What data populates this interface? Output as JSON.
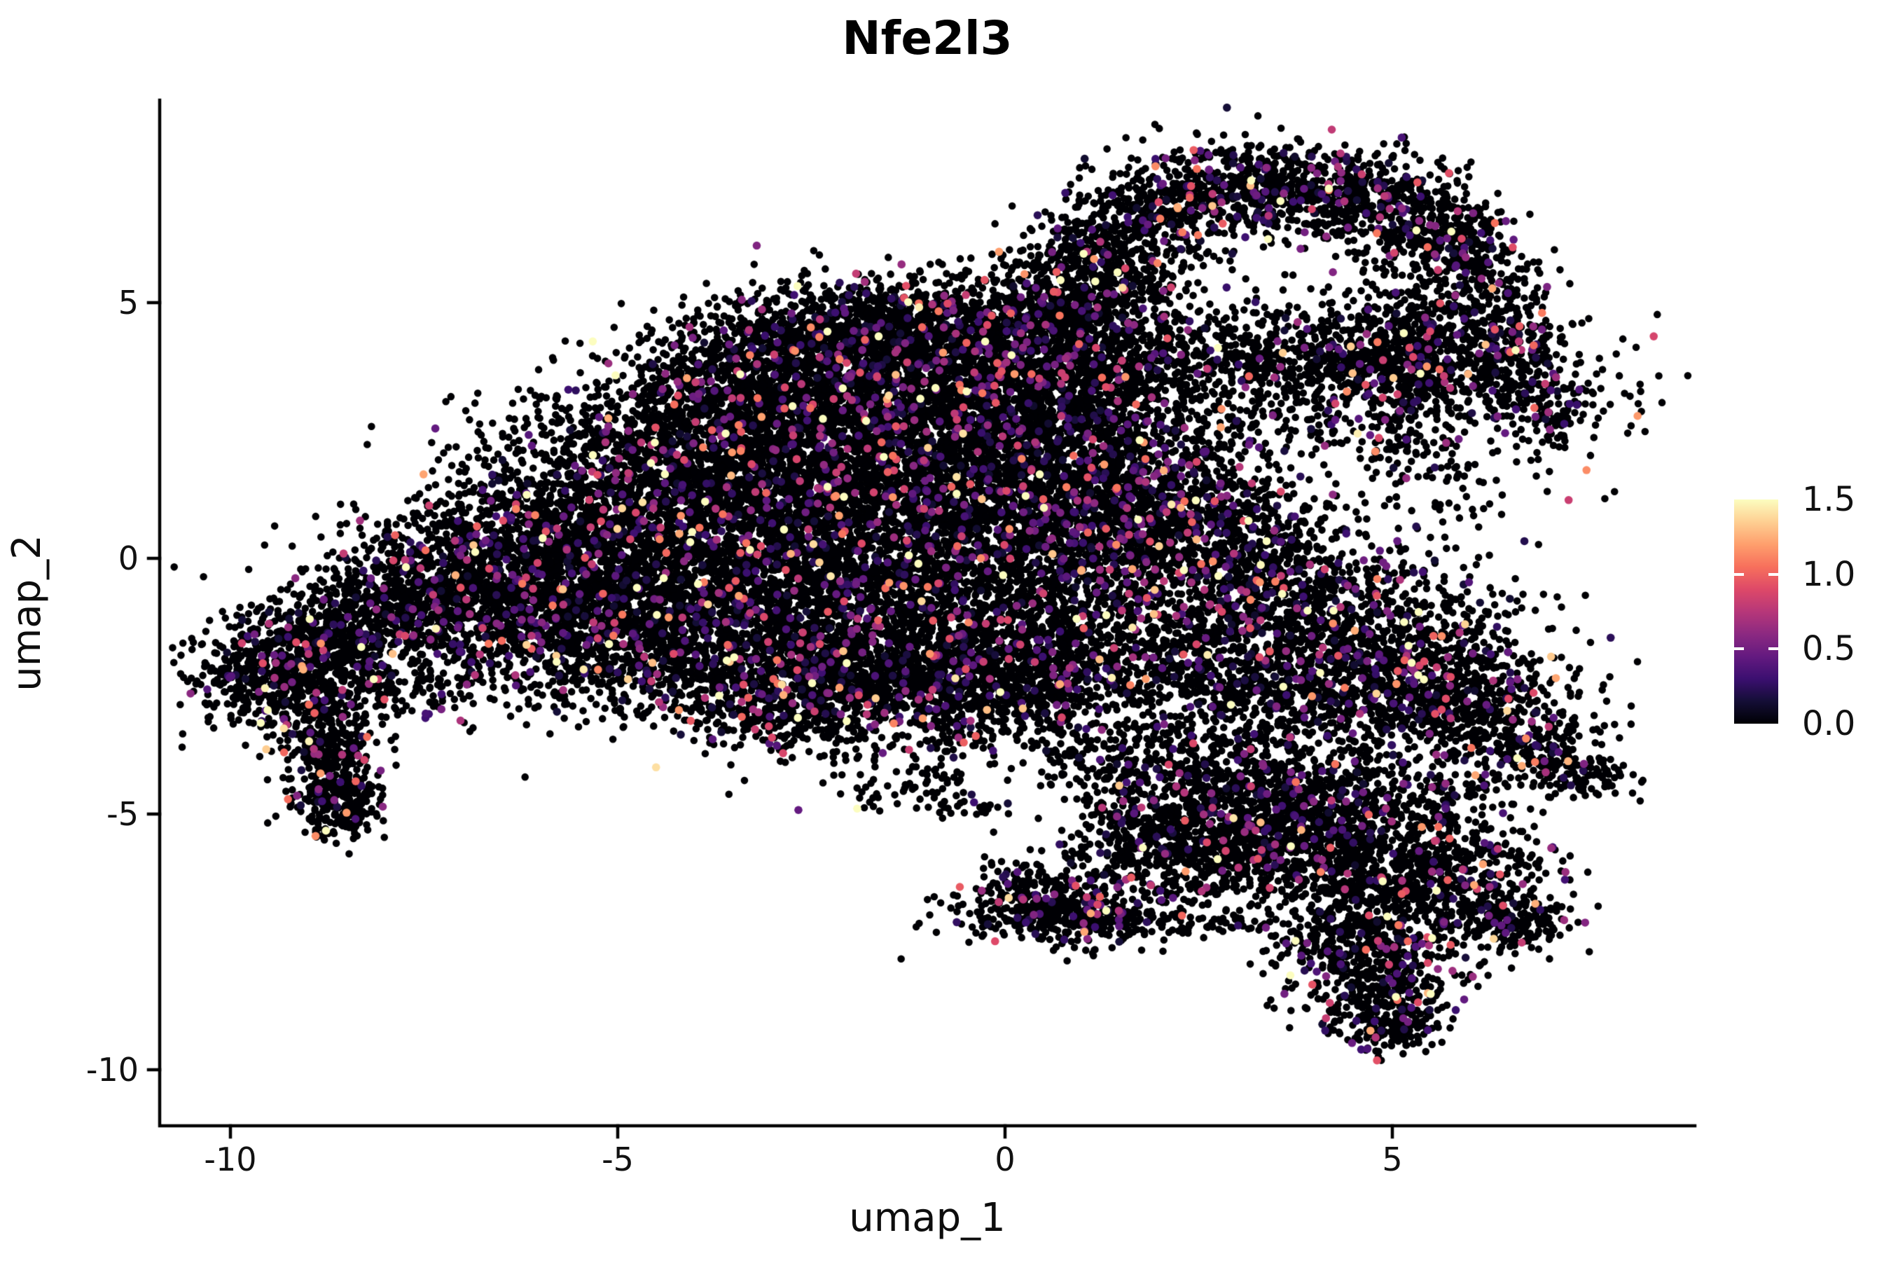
{
  "title": "Nfe2l3",
  "chart_data": {
    "type": "scatter",
    "subtype": "umap-feature-plot",
    "title": "Nfe2l3",
    "xlabel": "umap_1",
    "ylabel": "umap_2",
    "xlim": [
      -10.9,
      8.9
    ],
    "ylim": [
      -11.1,
      9.0
    ],
    "grid": false,
    "background": "#ffffff",
    "axis_color": "#000000",
    "text_color": "#111111",
    "x_ticks": [
      {
        "value": -10,
        "label": "-10"
      },
      {
        "value": -5,
        "label": "-5"
      },
      {
        "value": 0,
        "label": "0"
      },
      {
        "value": 5,
        "label": "5"
      }
    ],
    "y_ticks": [
      {
        "value": 5,
        "label": "5"
      },
      {
        "value": 0,
        "label": "0"
      },
      {
        "value": -5,
        "label": "-5"
      },
      {
        "value": -10,
        "label": "-10"
      }
    ],
    "colorbar": {
      "position": "right",
      "domain": [
        0,
        1.5
      ],
      "colormap": "magma",
      "ticks": [
        {
          "value": 1.5,
          "label": "1.5"
        },
        {
          "value": 1.0,
          "label": "1.0"
        },
        {
          "value": 0.5,
          "label": "0.5"
        },
        {
          "value": 0.0,
          "label": "0.0"
        }
      ],
      "stops": [
        [
          0.0,
          "#000004"
        ],
        [
          0.1,
          "#140e36"
        ],
        [
          0.2,
          "#3b0f70"
        ],
        [
          0.3,
          "#641a80"
        ],
        [
          0.4,
          "#8c2981"
        ],
        [
          0.5,
          "#b73779"
        ],
        [
          0.6,
          "#de4968"
        ],
        [
          0.7,
          "#f7705c"
        ],
        [
          0.8,
          "#fe9f6d"
        ],
        [
          0.9,
          "#fecf92"
        ],
        [
          1.0,
          "#fcfdbf"
        ]
      ]
    },
    "point": {
      "black_color": "#000004",
      "radius": 5.3,
      "colored_radius": 5.8,
      "color_rate": 0.09,
      "value_offset": 0.12,
      "value_scale": 0.42
    },
    "seed": 1337421,
    "density": 0.85,
    "clusters_format": "[center_umap1, center_umap2, sd_umap1, sd_umap2, n_points, color_rate_multiplier(optional)]",
    "clusters": [
      [
        -2.8,
        4.3,
        0.75,
        0.5,
        450
      ],
      [
        -1.8,
        4.55,
        0.8,
        0.5,
        480
      ],
      [
        -0.8,
        4.55,
        0.8,
        0.5,
        480
      ],
      [
        0.1,
        4.3,
        0.7,
        0.5,
        430
      ],
      [
        -3.6,
        3.3,
        0.9,
        0.6,
        560
      ],
      [
        -2.4,
        3.45,
        1,
        0.65,
        600
      ],
      [
        -1.2,
        3.45,
        1,
        0.65,
        600
      ],
      [
        0,
        3.3,
        0.9,
        0.65,
        560
      ],
      [
        0.95,
        3.1,
        0.7,
        0.6,
        440
      ],
      [
        -4.6,
        2.1,
        1,
        0.7,
        620
      ],
      [
        -3.2,
        2.25,
        1.1,
        0.75,
        650
      ],
      [
        -1.8,
        2.3,
        1.1,
        0.75,
        650
      ],
      [
        -0.4,
        2.2,
        1.1,
        0.75,
        650
      ],
      [
        0.9,
        2,
        0.8,
        0.7,
        480
      ],
      [
        -5.4,
        0.9,
        1,
        0.8,
        620
      ],
      [
        -4,
        1.05,
        1.1,
        0.85,
        650
      ],
      [
        -2.6,
        1.1,
        1.1,
        0.85,
        650
      ],
      [
        -1.2,
        1.05,
        1.1,
        0.85,
        650
      ],
      [
        0.2,
        0.95,
        1,
        0.8,
        600
      ],
      [
        -5.8,
        -0.3,
        0.9,
        0.75,
        560
      ],
      [
        -4.4,
        -0.3,
        1.05,
        0.85,
        620
      ],
      [
        -3,
        -0.25,
        1.05,
        0.85,
        620
      ],
      [
        -1.6,
        -0.35,
        1.05,
        0.85,
        620
      ],
      [
        -0.2,
        -0.4,
        1,
        0.8,
        580
      ],
      [
        -5,
        -1.3,
        0.85,
        0.65,
        500
      ],
      [
        -3.6,
        -1.5,
        0.95,
        0.7,
        540
      ],
      [
        -2.2,
        -1.65,
        0.95,
        0.7,
        540
      ],
      [
        -0.8,
        -1.7,
        0.95,
        0.7,
        540
      ],
      [
        0.45,
        -1.6,
        0.85,
        0.7,
        480
      ],
      [
        -3,
        -2.4,
        0.75,
        0.45,
        330
      ],
      [
        -1.8,
        -2.55,
        0.75,
        0.45,
        360
      ],
      [
        -0.6,
        -2.6,
        0.75,
        0.45,
        360
      ],
      [
        0.6,
        -2.5,
        0.65,
        0.45,
        310
      ],
      [
        -3.3,
        -3,
        0.6,
        0.45,
        150
      ],
      [
        -2.4,
        -3.3,
        0.5,
        0.4,
        90
      ],
      [
        -2,
        -3.1,
        1.2,
        0.35,
        90
      ],
      [
        -1.6,
        -4.3,
        0.5,
        0.3,
        45
      ],
      [
        -0.9,
        -4.6,
        0.4,
        0.25,
        32
      ],
      [
        -0.2,
        -5,
        0.3,
        0.25,
        22
      ],
      [
        -0.7,
        -3.8,
        0.4,
        0.3,
        40
      ],
      [
        -6.6,
        0.2,
        0.8,
        0.65,
        430
      ],
      [
        -7.4,
        -0.5,
        0.8,
        0.65,
        480
      ],
      [
        -8.2,
        -1.15,
        0.75,
        0.6,
        480
      ],
      [
        -8.95,
        -1.8,
        0.65,
        0.55,
        460
      ],
      [
        -9.5,
        -2.3,
        0.55,
        0.5,
        430
      ],
      [
        -6.9,
        -0.9,
        0.7,
        0.6,
        300
      ],
      [
        -8.75,
        -3.3,
        0.35,
        0.5,
        250
      ],
      [
        -8.7,
        -4.2,
        0.3,
        0.5,
        250
      ],
      [
        -8.62,
        -4.9,
        0.27,
        0.33,
        170
      ],
      [
        -7.6,
        -2.5,
        0.85,
        0.4,
        120
      ],
      [
        -6.5,
        -1.9,
        0.8,
        0.5,
        140
      ],
      [
        -5.6,
        -1.1,
        0.7,
        0.6,
        170
      ],
      [
        -5.2,
        -1.9,
        0.85,
        0.55,
        170
      ],
      [
        -4.3,
        -2.3,
        0.8,
        0.5,
        150
      ],
      [
        0.6,
        5.1,
        0.5,
        0.5,
        240,
        1.2
      ],
      [
        1.3,
        6,
        0.55,
        0.55,
        290,
        1.2
      ],
      [
        2.1,
        6.8,
        0.6,
        0.5,
        340,
        1.2
      ],
      [
        3,
        7.2,
        0.7,
        0.45,
        390,
        1.2
      ],
      [
        4,
        7.3,
        0.7,
        0.45,
        390,
        1.2
      ],
      [
        4.9,
        6.9,
        0.6,
        0.45,
        340,
        1.2
      ],
      [
        5.6,
        6.2,
        0.5,
        0.45,
        290,
        1.2
      ],
      [
        5.95,
        5.3,
        0.5,
        0.5,
        250,
        1.2
      ],
      [
        6.35,
        4.4,
        0.45,
        0.5,
        230,
        1.2
      ],
      [
        6.7,
        3.6,
        0.4,
        0.5,
        190,
        1.2
      ],
      [
        7,
        2.85,
        0.3,
        0.4,
        110,
        1.2
      ],
      [
        0.9,
        4.9,
        0.5,
        0.55,
        220
      ],
      [
        1.5,
        5.4,
        0.5,
        0.5,
        200
      ],
      [
        2,
        4.1,
        0.8,
        0.45,
        230
      ],
      [
        3,
        3.95,
        0.9,
        0.45,
        250
      ],
      [
        4,
        3.85,
        0.9,
        0.45,
        250
      ],
      [
        4.9,
        3.7,
        0.8,
        0.45,
        230
      ],
      [
        5.5,
        3.45,
        0.55,
        0.4,
        170
      ],
      [
        4.8,
        4.5,
        0.5,
        0.5,
        170
      ],
      [
        5.3,
        4.15,
        0.45,
        0.45,
        150
      ],
      [
        3.1,
        5.4,
        1,
        0.5,
        40
      ],
      [
        3.3,
        3,
        0.25,
        0.5,
        55
      ],
      [
        4.1,
        2.7,
        0.22,
        0.5,
        48
      ],
      [
        2.6,
        2.4,
        0.2,
        0.4,
        38
      ],
      [
        5,
        2.2,
        0.25,
        0.55,
        55
      ],
      [
        5.8,
        1.8,
        0.2,
        0.5,
        38
      ],
      [
        3.4,
        2.3,
        1.5,
        0.8,
        110
      ],
      [
        1.6,
        3,
        0.5,
        0.8,
        150
      ],
      [
        2.1,
        2.2,
        0.5,
        0.6,
        90
      ],
      [
        5.3,
        2.8,
        0.35,
        0.6,
        80
      ],
      [
        8,
        3.4,
        0.5,
        0.7,
        30
      ],
      [
        6.6,
        1.4,
        0.8,
        0.8,
        35
      ],
      [
        1.2,
        0.6,
        0.9,
        0.8,
        540,
        1.5
      ],
      [
        2.2,
        0.1,
        1,
        0.8,
        580,
        1.5
      ],
      [
        3.2,
        -0.5,
        1,
        0.8,
        580,
        1.5
      ],
      [
        4.2,
        -1.2,
        1,
        0.8,
        580,
        1.5
      ],
      [
        5,
        -1.9,
        0.9,
        0.7,
        520,
        1.4
      ],
      [
        5.7,
        -2.6,
        0.8,
        0.6,
        430,
        1.3
      ],
      [
        6.3,
        -3.2,
        0.6,
        0.5,
        280,
        1.2
      ],
      [
        1.7,
        1.3,
        0.75,
        0.5,
        260,
        1.5
      ],
      [
        2.9,
        0.7,
        0.75,
        0.45,
        230,
        1.5
      ],
      [
        6.8,
        -3.7,
        0.5,
        0.3,
        130
      ],
      [
        7.3,
        -4.1,
        0.4,
        0.18,
        80
      ],
      [
        7.6,
        -4.4,
        0.28,
        0.13,
        45
      ],
      [
        2,
        -1.8,
        0.9,
        0.6,
        340,
        1.3
      ],
      [
        3,
        -2.4,
        0.9,
        0.6,
        340,
        1.3
      ],
      [
        4,
        -3,
        0.8,
        0.6,
        300,
        1.2
      ],
      [
        0.5,
        -3.4,
        0.8,
        0.5,
        130
      ],
      [
        1.3,
        -3.9,
        0.6,
        0.4,
        90
      ],
      [
        5.6,
        -4.6,
        0.7,
        0.5,
        70
      ],
      [
        5.9,
        -5.5,
        0.5,
        0.5,
        110
      ],
      [
        2.6,
        -4.2,
        0.8,
        0.65,
        400
      ],
      [
        3.5,
        -4.6,
        0.9,
        0.65,
        430
      ],
      [
        4.4,
        -5,
        0.9,
        0.65,
        430
      ],
      [
        3,
        -5.3,
        0.8,
        0.6,
        360
      ],
      [
        3.9,
        -5.8,
        0.8,
        0.6,
        360
      ],
      [
        4.8,
        -6.1,
        0.8,
        0.6,
        340
      ],
      [
        2.35,
        -5.9,
        0.6,
        0.5,
        230
      ],
      [
        5.6,
        -6.4,
        0.65,
        0.5,
        280
      ],
      [
        6.3,
        -6.9,
        0.5,
        0.4,
        200
      ],
      [
        6.75,
        -7.15,
        0.3,
        0.28,
        80
      ],
      [
        4.55,
        -7.2,
        0.55,
        0.45,
        260,
        1.2
      ],
      [
        4.75,
        -7.95,
        0.5,
        0.45,
        250,
        1.2
      ],
      [
        4.9,
        -8.6,
        0.45,
        0.4,
        230,
        1.2
      ],
      [
        4.95,
        -9.15,
        0.33,
        0.27,
        130,
        1.2
      ],
      [
        1.8,
        -4.9,
        0.5,
        0.5,
        160
      ],
      [
        1.45,
        -5.6,
        0.4,
        0.4,
        110
      ],
      [
        3.9,
        -7.5,
        0.35,
        0.35,
        60
      ],
      [
        0.45,
        -6.85,
        0.55,
        0.35,
        360,
        1.3
      ],
      [
        1.15,
        -7,
        0.45,
        0.3,
        190,
        1.3
      ],
      [
        1.9,
        -7.1,
        0.5,
        0.15,
        60
      ],
      [
        2.7,
        -7.15,
        0.4,
        0.12,
        40
      ],
      [
        0.2,
        -6.2,
        0.3,
        0.25,
        40
      ],
      [
        1.5,
        -6.35,
        0.6,
        0.3,
        50
      ]
    ]
  }
}
